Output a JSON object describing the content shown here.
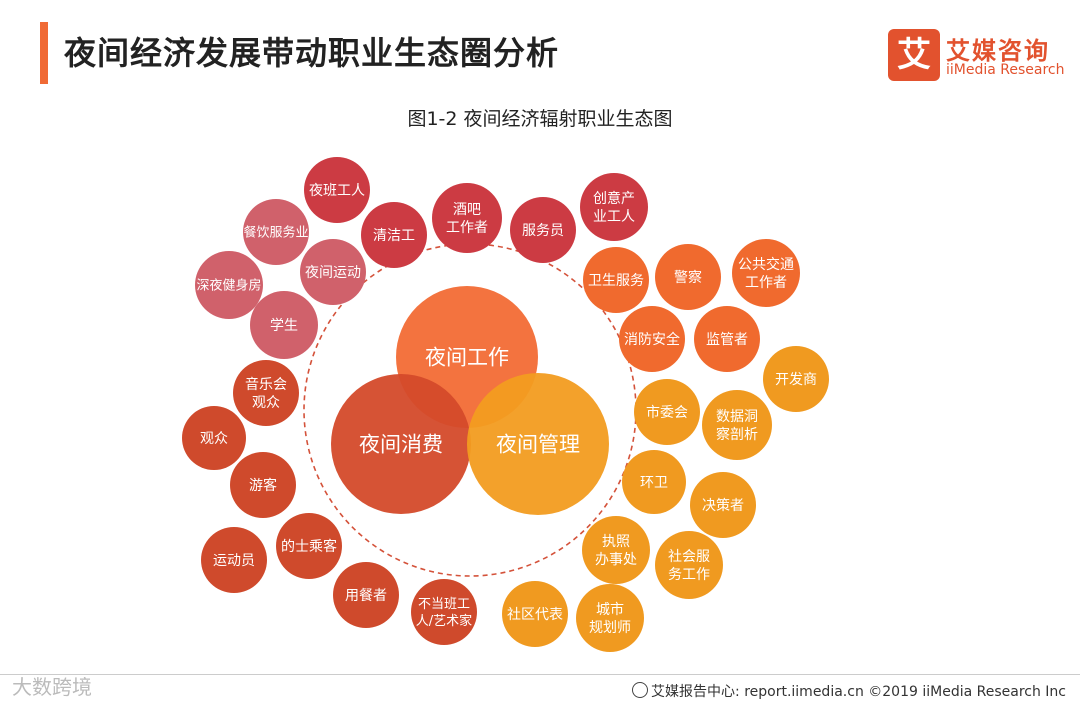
{
  "title": "夜间经济发展带动职业生态圈分析",
  "logo": {
    "mark": "艾",
    "name": "艾媒咨询",
    "sub": "iiMedia Research",
    "color": "#e2522e"
  },
  "subtitle": "图1-2 夜间经济辐射职业生态图",
  "core": [
    {
      "label": "夜间工作",
      "group": "work"
    },
    {
      "label": "夜间消费",
      "group": "consume"
    },
    {
      "label": "夜间管理",
      "group": "manage"
    }
  ],
  "nodes": [
    {
      "lines": [
        "夜班工人"
      ],
      "group": "work"
    },
    {
      "lines": [
        "餐饮服务业"
      ],
      "group": "work-light"
    },
    {
      "lines": [
        "清洁工"
      ],
      "group": "work"
    },
    {
      "lines": [
        "酒吧",
        "工作者"
      ],
      "group": "work"
    },
    {
      "lines": [
        "服务员"
      ],
      "group": "work"
    },
    {
      "lines": [
        "创意产",
        "业工人"
      ],
      "group": "work"
    },
    {
      "lines": [
        "深夜健身房"
      ],
      "group": "work-light"
    },
    {
      "lines": [
        "夜间运动"
      ],
      "group": "work-light"
    },
    {
      "lines": [
        "学生"
      ],
      "group": "work-light"
    },
    {
      "lines": [
        "卫生服务"
      ],
      "group": "orange"
    },
    {
      "lines": [
        "警察"
      ],
      "group": "orange"
    },
    {
      "lines": [
        "公共交通",
        "工作者"
      ],
      "group": "orange"
    },
    {
      "lines": [
        "消防安全"
      ],
      "group": "orange"
    },
    {
      "lines": [
        "监管者"
      ],
      "group": "orange"
    },
    {
      "lines": [
        "开发商"
      ],
      "group": "gold"
    },
    {
      "lines": [
        "音乐会",
        "观众"
      ],
      "group": "consume"
    },
    {
      "lines": [
        "观众"
      ],
      "group": "consume"
    },
    {
      "lines": [
        "游客"
      ],
      "group": "consume"
    },
    {
      "lines": [
        "运动员"
      ],
      "group": "consume"
    },
    {
      "lines": [
        "的士乘客"
      ],
      "group": "consume"
    },
    {
      "lines": [
        "用餐者"
      ],
      "group": "consume"
    },
    {
      "lines": [
        "不当班工",
        "人/艺术家"
      ],
      "group": "consume"
    },
    {
      "lines": [
        "市委会"
      ],
      "group": "gold"
    },
    {
      "lines": [
        "数据洞",
        "察剖析"
      ],
      "group": "gold"
    },
    {
      "lines": [
        "环卫"
      ],
      "group": "gold"
    },
    {
      "lines": [
        "决策者"
      ],
      "group": "gold"
    },
    {
      "lines": [
        "执照",
        "办事处"
      ],
      "group": "gold"
    },
    {
      "lines": [
        "社会服",
        "务工作"
      ],
      "group": "gold"
    },
    {
      "lines": [
        "社区代表"
      ],
      "group": "gold"
    },
    {
      "lines": [
        "城市",
        "规划师"
      ],
      "group": "gold"
    }
  ],
  "colors": {
    "work": "#cc3b43",
    "work-light": "#d0616b",
    "consume": "#cf4a2c",
    "orange": "#f06a2e",
    "gold": "#f09a20",
    "core-work": "#f26b35",
    "core-consume": "#d44a2a",
    "core-manage": "#f29c20",
    "ring": "#d4523a"
  },
  "footer": "艾媒报告中心: report.iimedia.cn  ©2019  iiMedia Research  Inc",
  "watermark": "大数跨境"
}
